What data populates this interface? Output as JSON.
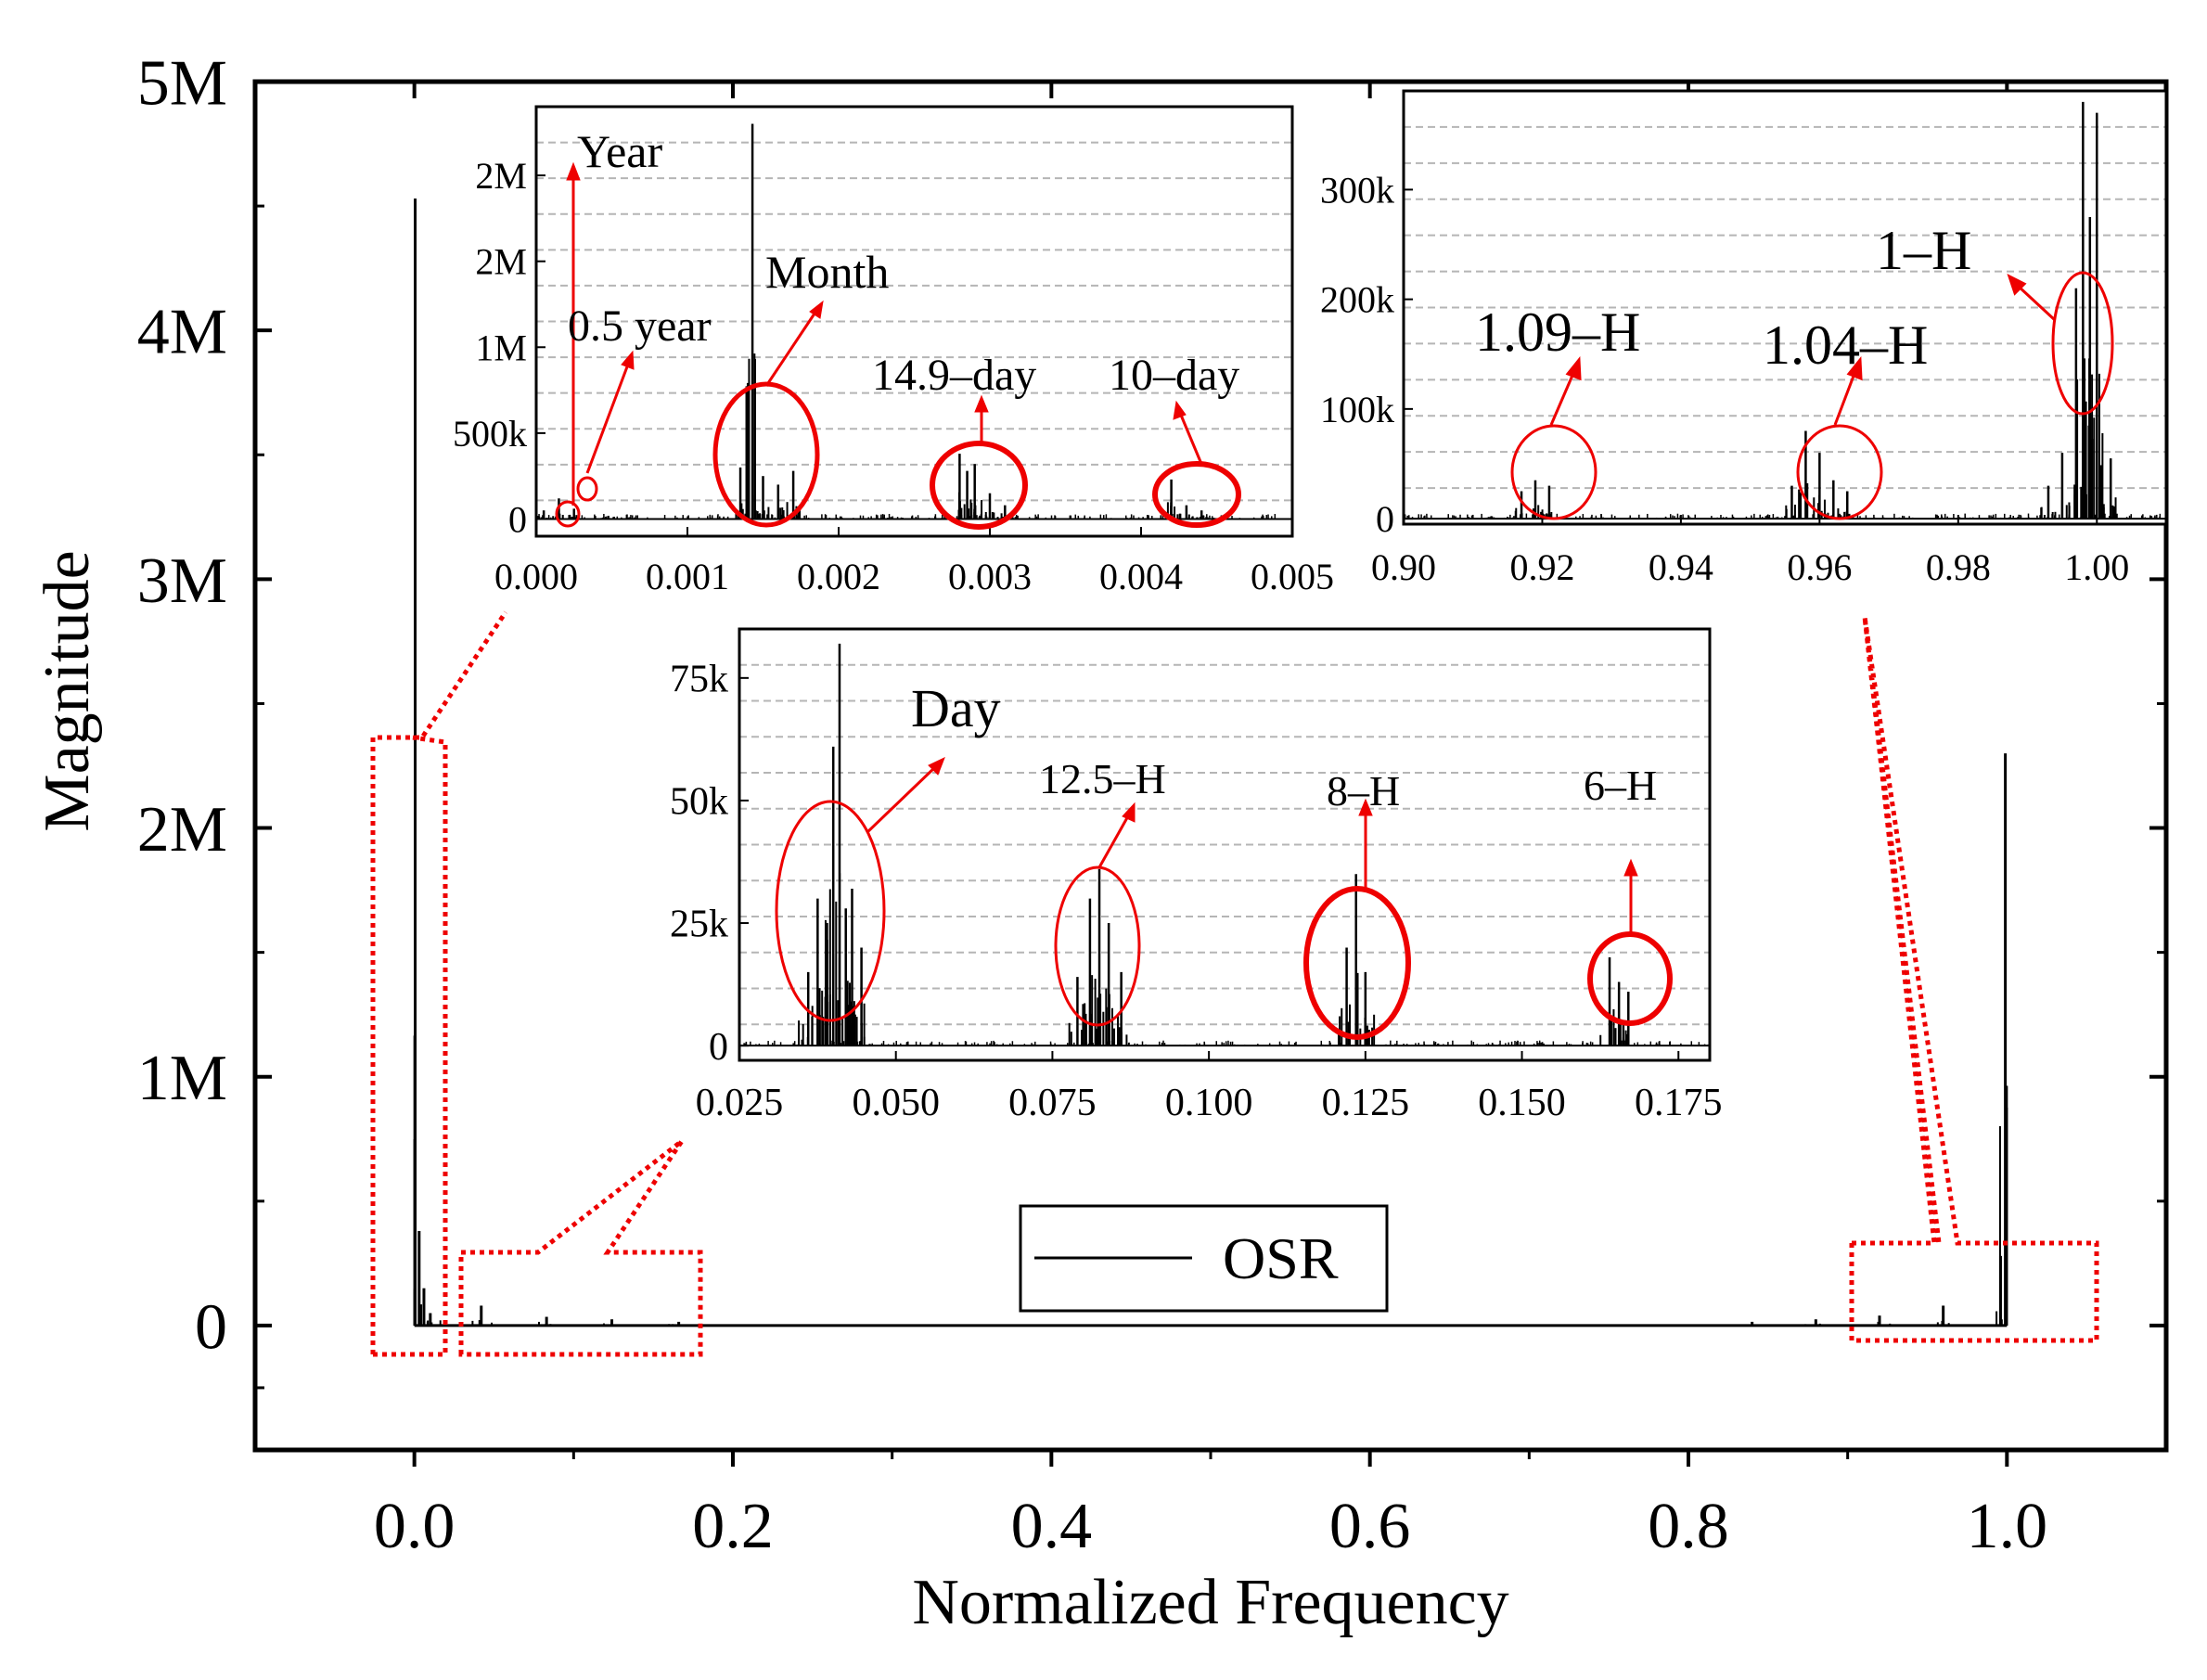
{
  "chart_data": [
    {
      "id": "main",
      "type": "line",
      "title": "",
      "xlabel": "Normalized Frequency",
      "ylabel": "Magnitude",
      "xlim": [
        -0.1,
        1.1
      ],
      "ylim": [
        -500000,
        5000000
      ],
      "xticks": [
        0.0,
        0.2,
        0.4,
        0.6,
        0.8,
        1.0
      ],
      "xtick_labels": [
        "0.0",
        "0.2",
        "0.4",
        "0.6",
        "0.8",
        "1.0"
      ],
      "yticks": [
        0,
        1000000,
        2000000,
        3000000,
        4000000,
        5000000
      ],
      "ytick_labels": [
        "0",
        "1M",
        "2M",
        "3M",
        "4M",
        "5M"
      ],
      "grid": false,
      "legend": {
        "entries": [
          "OSR"
        ],
        "placement": "lower-center"
      },
      "series": [
        {
          "name": "OSR",
          "peaks": [
            {
              "x": 0.0005,
              "y": 4530000
            },
            {
              "x": 0.003,
              "y": 380000
            },
            {
              "x": 0.006,
              "y": 150000
            },
            {
              "x": 0.01,
              "y": 50000
            },
            {
              "x": 0.042,
              "y": 80000
            },
            {
              "x": 0.083,
              "y": 35000
            },
            {
              "x": 0.124,
              "y": 25000
            },
            {
              "x": 0.166,
              "y": 15000
            },
            {
              "x": 0.84,
              "y": 15000
            },
            {
              "x": 0.88,
              "y": 25000
            },
            {
              "x": 0.92,
              "y": 40000
            },
            {
              "x": 0.96,
              "y": 80000
            },
            {
              "x": 0.999,
              "y": 2300000
            },
            {
              "x": 0.996,
              "y": 280000
            }
          ]
        }
      ]
    },
    {
      "id": "inset_low",
      "type": "line",
      "xlim": [
        0.0,
        0.005
      ],
      "ylim": [
        -100000,
        2400000
      ],
      "xticks": [
        0.0,
        0.001,
        0.002,
        0.003,
        0.004,
        0.005
      ],
      "xtick_labels": [
        "0.000",
        "0.001",
        "0.002",
        "0.003",
        "0.004",
        "0.005"
      ],
      "yticks": [
        0,
        500000,
        1000000,
        1500000,
        2000000
      ],
      "ytick_labels": [
        "0",
        "500k",
        "1M",
        "2M",
        "2M"
      ],
      "grid": true,
      "series": [
        {
          "name": "OSR",
          "peaks": [
            {
              "x": 5e-05,
              "y": 50000
            },
            {
              "x": 0.00015,
              "y": 120000
            },
            {
              "x": 0.00025,
              "y": 60000
            },
            {
              "x": 0.00135,
              "y": 300000
            },
            {
              "x": 0.0014,
              "y": 400000
            },
            {
              "x": 0.00143,
              "y": 2300000
            },
            {
              "x": 0.0015,
              "y": 250000
            },
            {
              "x": 0.0016,
              "y": 200000
            },
            {
              "x": 0.0017,
              "y": 280000
            },
            {
              "x": 0.0028,
              "y": 380000
            },
            {
              "x": 0.00285,
              "y": 280000
            },
            {
              "x": 0.0029,
              "y": 320000
            },
            {
              "x": 0.003,
              "y": 150000
            },
            {
              "x": 0.0031,
              "y": 80000
            },
            {
              "x": 0.0042,
              "y": 230000
            },
            {
              "x": 0.0043,
              "y": 80000
            },
            {
              "x": 0.0044,
              "y": 50000
            }
          ]
        }
      ],
      "annotations": [
        {
          "text": "Year",
          "target_x": 8e-05,
          "target_y": 30000
        },
        {
          "text": "0.5 year",
          "target_x": 0.00025,
          "target_y": 180000
        },
        {
          "text": "Month",
          "target_x": 0.0015,
          "target_y": 600000
        },
        {
          "text": "14.9–day",
          "target_x": 0.0029,
          "target_y": 400000
        },
        {
          "text": "10–day",
          "target_x": 0.0044,
          "target_y": 280000
        }
      ]
    },
    {
      "id": "inset_high",
      "type": "line",
      "xlim": [
        0.9,
        1.01
      ],
      "ylim": [
        -5000,
        390000
      ],
      "xticks": [
        0.9,
        0.92,
        0.94,
        0.96,
        0.98,
        1.0
      ],
      "xtick_labels": [
        "0.90",
        "0.92",
        "0.94",
        "0.96",
        "0.98",
        "1.00"
      ],
      "yticks": [
        0,
        100000,
        200000,
        300000
      ],
      "ytick_labels": [
        "0",
        "100k",
        "200k",
        "300k"
      ],
      "grid": true,
      "series": [
        {
          "name": "OSR",
          "peaks": [
            {
              "x": 0.917,
              "y": 25000
            },
            {
              "x": 0.919,
              "y": 35000
            },
            {
              "x": 0.921,
              "y": 30000
            },
            {
              "x": 0.956,
              "y": 30000
            },
            {
              "x": 0.958,
              "y": 80000
            },
            {
              "x": 0.96,
              "y": 60000
            },
            {
              "x": 0.962,
              "y": 35000
            },
            {
              "x": 0.964,
              "y": 25000
            },
            {
              "x": 0.993,
              "y": 30000
            },
            {
              "x": 0.995,
              "y": 60000
            },
            {
              "x": 0.997,
              "y": 210000
            },
            {
              "x": 0.998,
              "y": 380000
            },
            {
              "x": 0.999,
              "y": 275000
            },
            {
              "x": 1.0,
              "y": 370000
            },
            {
              "x": 1.002,
              "y": 55000
            }
          ]
        }
      ],
      "annotations": [
        {
          "text": "1.09–H",
          "target_x": 0.919,
          "target_y": 40000
        },
        {
          "text": "1.04–H",
          "target_x": 0.959,
          "target_y": 40000
        },
        {
          "text": "1–H",
          "target_x": 0.998,
          "target_y": 180000
        }
      ]
    },
    {
      "id": "inset_mid",
      "type": "line",
      "xlim": [
        0.025,
        0.18
      ],
      "ylim": [
        -3000,
        85000
      ],
      "xticks": [
        0.025,
        0.05,
        0.075,
        0.1,
        0.125,
        0.15,
        0.175
      ],
      "xtick_labels": [
        "0.025",
        "0.050",
        "0.075",
        "0.100",
        "0.125",
        "0.150",
        "0.175"
      ],
      "yticks": [
        0,
        25000,
        50000,
        75000
      ],
      "ytick_labels": [
        "0",
        "25k",
        "50k",
        "75k"
      ],
      "grid": true,
      "series": [
        {
          "name": "OSR",
          "peaks": [
            {
              "x": 0.036,
              "y": 15000
            },
            {
              "x": 0.0375,
              "y": 30000
            },
            {
              "x": 0.039,
              "y": 25000
            },
            {
              "x": 0.04,
              "y": 61000
            },
            {
              "x": 0.041,
              "y": 82000
            },
            {
              "x": 0.042,
              "y": 28000
            },
            {
              "x": 0.043,
              "y": 32000
            },
            {
              "x": 0.0445,
              "y": 20000
            },
            {
              "x": 0.079,
              "y": 14000
            },
            {
              "x": 0.081,
              "y": 30000
            },
            {
              "x": 0.0825,
              "y": 36000
            },
            {
              "x": 0.084,
              "y": 25000
            },
            {
              "x": 0.086,
              "y": 15000
            },
            {
              "x": 0.122,
              "y": 20000
            },
            {
              "x": 0.1235,
              "y": 35000
            },
            {
              "x": 0.125,
              "y": 15000
            },
            {
              "x": 0.164,
              "y": 18000
            },
            {
              "x": 0.1655,
              "y": 13000
            },
            {
              "x": 0.167,
              "y": 11000
            }
          ]
        }
      ],
      "annotations": [
        {
          "text": "Day",
          "target_x": 0.041,
          "target_y": 48000
        },
        {
          "text": "12.5–H",
          "target_x": 0.083,
          "target_y": 40000
        },
        {
          "text": "8–H",
          "target_x": 0.124,
          "target_y": 30000
        },
        {
          "text": "6–H",
          "target_x": 0.1655,
          "target_y": 18000
        }
      ]
    }
  ]
}
